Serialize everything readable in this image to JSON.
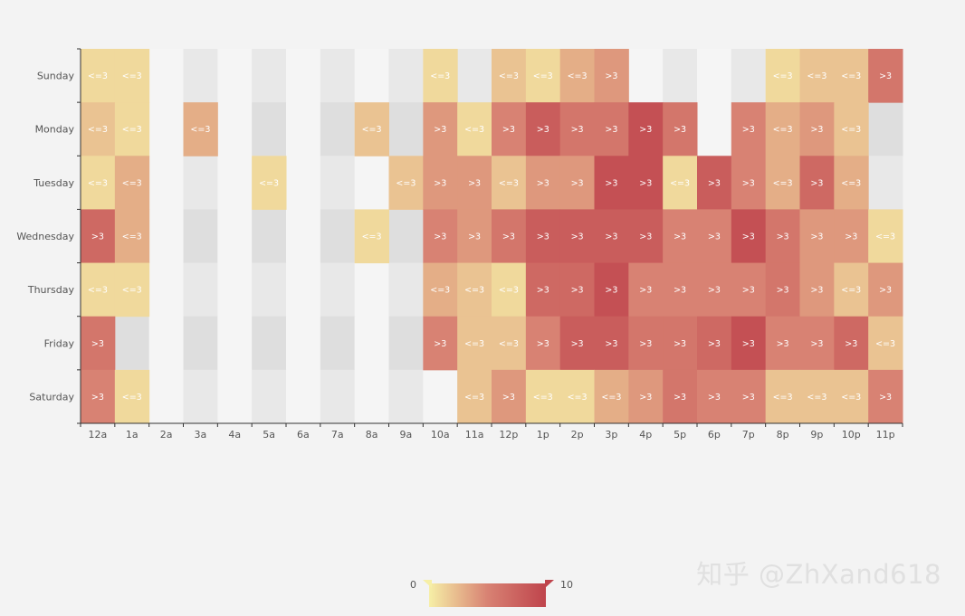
{
  "chart_data": {
    "type": "heatmap",
    "x_categories": [
      "12a",
      "1a",
      "2a",
      "3a",
      "4a",
      "5a",
      "6a",
      "7a",
      "8a",
      "9a",
      "10a",
      "11a",
      "12p",
      "1p",
      "2p",
      "3p",
      "4p",
      "5p",
      "6p",
      "7p",
      "8p",
      "9p",
      "10p",
      "11p"
    ],
    "y_categories": [
      "Sunday",
      "Monday",
      "Tuesday",
      "Wednesday",
      "Thursday",
      "Friday",
      "Saturday"
    ],
    "values": [
      [
        1,
        1,
        0,
        0,
        0,
        0,
        0,
        0,
        0,
        0,
        1,
        0,
        2,
        1,
        3,
        4,
        0,
        0,
        0,
        0,
        1,
        2,
        2,
        6
      ],
      [
        2,
        1,
        0,
        3,
        0,
        0,
        0,
        0,
        2,
        0,
        4,
        1,
        5,
        8,
        6,
        6,
        9,
        6,
        0,
        5,
        3,
        4,
        2,
        0
      ],
      [
        1,
        3,
        0,
        0,
        0,
        1,
        0,
        0,
        0,
        2,
        4,
        4,
        2,
        4,
        4,
        9,
        9,
        1,
        8,
        5,
        3,
        7,
        3,
        0
      ],
      [
        7,
        3,
        0,
        0,
        0,
        0,
        0,
        0,
        1,
        0,
        5,
        4,
        6,
        8,
        8,
        8,
        8,
        5,
        5,
        9,
        6,
        4,
        4,
        1
      ],
      [
        1,
        1,
        0,
        0,
        0,
        0,
        0,
        0,
        0,
        0,
        3,
        2,
        1,
        7,
        7,
        9,
        5,
        5,
        5,
        5,
        6,
        4,
        2,
        4
      ],
      [
        6,
        0,
        0,
        0,
        0,
        0,
        0,
        0,
        0,
        0,
        5,
        2,
        2,
        5,
        8,
        8,
        6,
        6,
        7,
        9,
        5,
        5,
        7,
        2
      ],
      [
        5,
        1,
        0,
        0,
        0,
        0,
        0,
        0,
        0,
        0,
        0,
        2,
        4,
        1,
        1,
        3,
        4,
        6,
        5,
        5,
        2,
        2,
        2,
        5
      ]
    ],
    "low_label": "<=3",
    "high_label": ">3",
    "visual_map": {
      "min": 0,
      "max": 10,
      "min_label": "0",
      "max_label": "10",
      "colors": [
        "#f6efa6",
        "#d88273",
        "#bf444c"
      ]
    }
  },
  "watermark": "知乎 @ZhXand618"
}
